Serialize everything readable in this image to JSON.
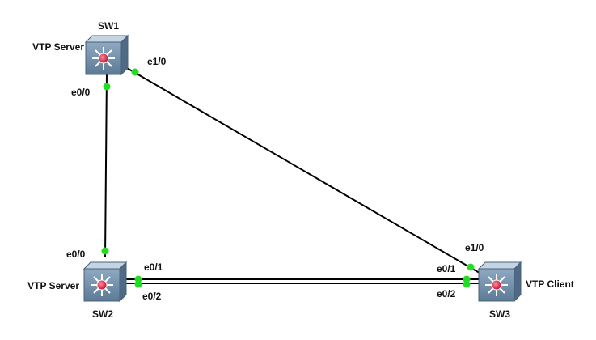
{
  "colors": {
    "link": "#000000",
    "port_up": "#22dd22",
    "switch_body": "#6d8ca8",
    "switch_top": "#a9c0d6",
    "switch_center": "#e0334a"
  },
  "devices": {
    "sw1": {
      "name": "SW1",
      "role": "VTP Server",
      "icon": "layer3-switch-icon"
    },
    "sw2": {
      "name": "SW2",
      "role": "VTP Server",
      "icon": "layer3-switch-icon"
    },
    "sw3": {
      "name": "SW3",
      "role": "VTP Client",
      "icon": "layer3-switch-icon"
    }
  },
  "links": [
    {
      "from": "SW1",
      "from_port": "e0/0",
      "to": "SW2",
      "to_port": "e0/0"
    },
    {
      "from": "SW1",
      "from_port": "e1/0",
      "to": "SW3",
      "to_port": "e1/0"
    },
    {
      "from": "SW2",
      "from_port": "e0/1",
      "to": "SW3",
      "to_port": "e0/1"
    },
    {
      "from": "SW2",
      "from_port": "e0/2",
      "to": "SW3",
      "to_port": "e0/2"
    }
  ]
}
